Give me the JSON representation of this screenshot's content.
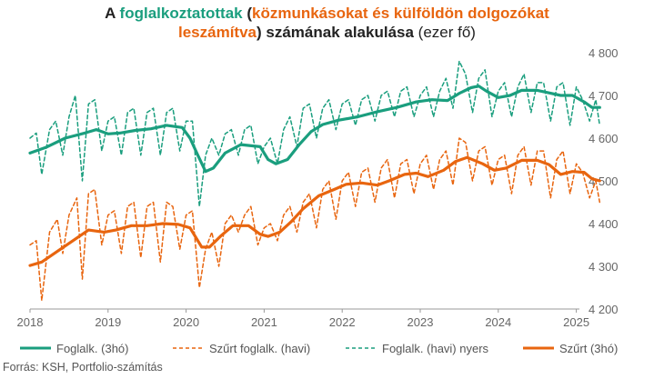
{
  "title": {
    "p1": "A ",
    "p2": "foglalkoztatottak",
    "p3": " (",
    "p4": "közmunkásokat és külföldön dolgozókat",
    "p5": "leszámítva",
    "p6": ") számának alakulása",
    "p7": " (ezer fő)"
  },
  "source": "Forrás: KSH, Portfolio-számítás",
  "colors": {
    "green": "#1a9e7e",
    "orange": "#e8650f"
  },
  "chart_data": {
    "type": "line",
    "x_ticks": [
      "2018",
      "2019",
      "2020",
      "2021",
      "2022",
      "2023",
      "2024",
      "2025"
    ],
    "y_ticks": [
      "4 800",
      "4 700",
      "4 600",
      "4 500",
      "4 400",
      "4 300",
      "4 200"
    ],
    "ylim": [
      4200,
      4800
    ],
    "grid": false,
    "legend_position": "bottom",
    "series": [
      {
        "name": "Foglalk. (3hó)",
        "key": "g3",
        "style": "solid",
        "color": "#1a9e7e",
        "points": [
          [
            2018.0,
            4565
          ],
          [
            2018.2,
            4578
          ],
          [
            2018.45,
            4600
          ],
          [
            2018.7,
            4612
          ],
          [
            2018.85,
            4620
          ],
          [
            2019.0,
            4610
          ],
          [
            2019.15,
            4612
          ],
          [
            2019.35,
            4618
          ],
          [
            2019.55,
            4622
          ],
          [
            2019.75,
            4630
          ],
          [
            2019.95,
            4625
          ],
          [
            2020.05,
            4600
          ],
          [
            2020.15,
            4560
          ],
          [
            2020.25,
            4522
          ],
          [
            2020.35,
            4530
          ],
          [
            2020.5,
            4565
          ],
          [
            2020.7,
            4585
          ],
          [
            2020.85,
            4582
          ],
          [
            2020.95,
            4580
          ],
          [
            2021.05,
            4550
          ],
          [
            2021.15,
            4540
          ],
          [
            2021.3,
            4550
          ],
          [
            2021.45,
            4585
          ],
          [
            2021.6,
            4615
          ],
          [
            2021.75,
            4632
          ],
          [
            2021.95,
            4642
          ],
          [
            2022.2,
            4650
          ],
          [
            2022.45,
            4662
          ],
          [
            2022.7,
            4672
          ],
          [
            2022.95,
            4685
          ],
          [
            2023.15,
            4690
          ],
          [
            2023.35,
            4688
          ],
          [
            2023.5,
            4705
          ],
          [
            2023.65,
            4718
          ],
          [
            2023.75,
            4722
          ],
          [
            2023.85,
            4710
          ],
          [
            2024.0,
            4695
          ],
          [
            2024.15,
            4700
          ],
          [
            2024.3,
            4712
          ],
          [
            2024.5,
            4712
          ],
          [
            2024.65,
            4706
          ],
          [
            2024.8,
            4700
          ],
          [
            2024.95,
            4700
          ],
          [
            2025.1,
            4685
          ],
          [
            2025.2,
            4672
          ],
          [
            2025.3,
            4672
          ]
        ]
      },
      {
        "name": "Szűrt foglalk. (havi)",
        "key": "oh",
        "style": "dashed",
        "color": "#e8650f",
        "points": [
          [
            2018.0,
            4350
          ],
          [
            2018.08,
            4360
          ],
          [
            2018.15,
            4220
          ],
          [
            2018.25,
            4380
          ],
          [
            2018.35,
            4410
          ],
          [
            2018.42,
            4330
          ],
          [
            2018.5,
            4420
          ],
          [
            2018.6,
            4460
          ],
          [
            2018.67,
            4270
          ],
          [
            2018.75,
            4470
          ],
          [
            2018.83,
            4480
          ],
          [
            2018.92,
            4350
          ],
          [
            2019.0,
            4420
          ],
          [
            2019.08,
            4430
          ],
          [
            2019.17,
            4330
          ],
          [
            2019.25,
            4440
          ],
          [
            2019.33,
            4450
          ],
          [
            2019.42,
            4320
          ],
          [
            2019.5,
            4440
          ],
          [
            2019.58,
            4450
          ],
          [
            2019.67,
            4310
          ],
          [
            2019.75,
            4450
          ],
          [
            2019.83,
            4440
          ],
          [
            2019.92,
            4340
          ],
          [
            2020.0,
            4420
          ],
          [
            2020.08,
            4430
          ],
          [
            2020.17,
            4250
          ],
          [
            2020.25,
            4340
          ],
          [
            2020.33,
            4380
          ],
          [
            2020.42,
            4300
          ],
          [
            2020.5,
            4400
          ],
          [
            2020.58,
            4420
          ],
          [
            2020.67,
            4380
          ],
          [
            2020.75,
            4420
          ],
          [
            2020.83,
            4440
          ],
          [
            2020.92,
            4350
          ],
          [
            2021.0,
            4390
          ],
          [
            2021.08,
            4400
          ],
          [
            2021.17,
            4360
          ],
          [
            2021.25,
            4420
          ],
          [
            2021.33,
            4440
          ],
          [
            2021.42,
            4380
          ],
          [
            2021.5,
            4450
          ],
          [
            2021.58,
            4470
          ],
          [
            2021.67,
            4390
          ],
          [
            2021.75,
            4480
          ],
          [
            2021.83,
            4500
          ],
          [
            2021.92,
            4410
          ],
          [
            2022.0,
            4500
          ],
          [
            2022.08,
            4520
          ],
          [
            2022.17,
            4440
          ],
          [
            2022.25,
            4520
          ],
          [
            2022.33,
            4530
          ],
          [
            2022.42,
            4450
          ],
          [
            2022.5,
            4530
          ],
          [
            2022.58,
            4550
          ],
          [
            2022.67,
            4460
          ],
          [
            2022.75,
            4540
          ],
          [
            2022.83,
            4550
          ],
          [
            2022.92,
            4470
          ],
          [
            2023.0,
            4540
          ],
          [
            2023.08,
            4560
          ],
          [
            2023.17,
            4480
          ],
          [
            2023.25,
            4550
          ],
          [
            2023.33,
            4570
          ],
          [
            2023.42,
            4490
          ],
          [
            2023.5,
            4600
          ],
          [
            2023.58,
            4590
          ],
          [
            2023.67,
            4500
          ],
          [
            2023.75,
            4570
          ],
          [
            2023.83,
            4580
          ],
          [
            2023.92,
            4490
          ],
          [
            2024.0,
            4550
          ],
          [
            2024.08,
            4560
          ],
          [
            2024.17,
            4470
          ],
          [
            2024.25,
            4560
          ],
          [
            2024.33,
            4580
          ],
          [
            2024.42,
            4490
          ],
          [
            2024.5,
            4570
          ],
          [
            2024.58,
            4570
          ],
          [
            2024.67,
            4460
          ],
          [
            2024.75,
            4550
          ],
          [
            2024.83,
            4570
          ],
          [
            2024.92,
            4470
          ],
          [
            2025.0,
            4540
          ],
          [
            2025.08,
            4520
          ],
          [
            2025.17,
            4460
          ],
          [
            2025.25,
            4500
          ],
          [
            2025.3,
            4450
          ]
        ]
      },
      {
        "name": "Foglalk. (havi) nyers",
        "key": "gh",
        "style": "dashed",
        "color": "#1a9e7e",
        "points": [
          [
            2018.0,
            4600
          ],
          [
            2018.08,
            4612
          ],
          [
            2018.15,
            4515
          ],
          [
            2018.25,
            4620
          ],
          [
            2018.33,
            4640
          ],
          [
            2018.42,
            4560
          ],
          [
            2018.5,
            4650
          ],
          [
            2018.58,
            4700
          ],
          [
            2018.67,
            4500
          ],
          [
            2018.75,
            4680
          ],
          [
            2018.83,
            4690
          ],
          [
            2018.92,
            4570
          ],
          [
            2019.0,
            4640
          ],
          [
            2019.08,
            4650
          ],
          [
            2019.17,
            4560
          ],
          [
            2019.25,
            4660
          ],
          [
            2019.33,
            4670
          ],
          [
            2019.42,
            4560
          ],
          [
            2019.5,
            4660
          ],
          [
            2019.58,
            4670
          ],
          [
            2019.67,
            4560
          ],
          [
            2019.75,
            4660
          ],
          [
            2019.83,
            4670
          ],
          [
            2019.92,
            4570
          ],
          [
            2020.0,
            4640
          ],
          [
            2020.08,
            4640
          ],
          [
            2020.17,
            4440
          ],
          [
            2020.25,
            4560
          ],
          [
            2020.33,
            4600
          ],
          [
            2020.42,
            4560
          ],
          [
            2020.5,
            4610
          ],
          [
            2020.58,
            4620
          ],
          [
            2020.67,
            4560
          ],
          [
            2020.75,
            4620
          ],
          [
            2020.83,
            4630
          ],
          [
            2020.92,
            4540
          ],
          [
            2021.0,
            4580
          ],
          [
            2021.08,
            4600
          ],
          [
            2021.17,
            4540
          ],
          [
            2021.25,
            4620
          ],
          [
            2021.33,
            4650
          ],
          [
            2021.42,
            4580
          ],
          [
            2021.5,
            4670
          ],
          [
            2021.58,
            4680
          ],
          [
            2021.67,
            4600
          ],
          [
            2021.75,
            4670
          ],
          [
            2021.83,
            4690
          ],
          [
            2021.92,
            4620
          ],
          [
            2022.0,
            4680
          ],
          [
            2022.08,
            4690
          ],
          [
            2022.17,
            4630
          ],
          [
            2022.25,
            4690
          ],
          [
            2022.33,
            4700
          ],
          [
            2022.42,
            4640
          ],
          [
            2022.5,
            4700
          ],
          [
            2022.58,
            4710
          ],
          [
            2022.67,
            4650
          ],
          [
            2022.75,
            4710
          ],
          [
            2022.83,
            4720
          ],
          [
            2022.92,
            4650
          ],
          [
            2023.0,
            4700
          ],
          [
            2023.08,
            4720
          ],
          [
            2023.17,
            4650
          ],
          [
            2023.25,
            4710
          ],
          [
            2023.33,
            4740
          ],
          [
            2023.42,
            4670
          ],
          [
            2023.5,
            4780
          ],
          [
            2023.58,
            4750
          ],
          [
            2023.67,
            4660
          ],
          [
            2023.75,
            4740
          ],
          [
            2023.83,
            4760
          ],
          [
            2023.92,
            4650
          ],
          [
            2024.0,
            4710
          ],
          [
            2024.08,
            4730
          ],
          [
            2024.17,
            4650
          ],
          [
            2024.25,
            4720
          ],
          [
            2024.33,
            4750
          ],
          [
            2024.42,
            4660
          ],
          [
            2024.5,
            4730
          ],
          [
            2024.58,
            4730
          ],
          [
            2024.67,
            4640
          ],
          [
            2024.75,
            4720
          ],
          [
            2024.83,
            4730
          ],
          [
            2024.92,
            4630
          ],
          [
            2025.0,
            4720
          ],
          [
            2025.08,
            4690
          ],
          [
            2025.17,
            4640
          ],
          [
            2025.25,
            4690
          ],
          [
            2025.3,
            4630
          ]
        ]
      },
      {
        "name": "Szűrt (3hó)",
        "key": "o3",
        "style": "solid",
        "color": "#e8650f",
        "points": [
          [
            2018.0,
            4302
          ],
          [
            2018.15,
            4310
          ],
          [
            2018.35,
            4335
          ],
          [
            2018.55,
            4360
          ],
          [
            2018.75,
            4385
          ],
          [
            2018.95,
            4380
          ],
          [
            2019.1,
            4385
          ],
          [
            2019.3,
            4395
          ],
          [
            2019.5,
            4395
          ],
          [
            2019.7,
            4400
          ],
          [
            2019.9,
            4398
          ],
          [
            2020.05,
            4390
          ],
          [
            2020.2,
            4345
          ],
          [
            2020.3,
            4345
          ],
          [
            2020.45,
            4372
          ],
          [
            2020.6,
            4395
          ],
          [
            2020.8,
            4395
          ],
          [
            2020.95,
            4375
          ],
          [
            2021.05,
            4370
          ],
          [
            2021.2,
            4380
          ],
          [
            2021.35,
            4405
          ],
          [
            2021.5,
            4435
          ],
          [
            2021.7,
            4465
          ],
          [
            2021.9,
            4480
          ],
          [
            2022.05,
            4492
          ],
          [
            2022.25,
            4495
          ],
          [
            2022.45,
            4490
          ],
          [
            2022.6,
            4500
          ],
          [
            2022.8,
            4515
          ],
          [
            2022.95,
            4518
          ],
          [
            2023.1,
            4510
          ],
          [
            2023.3,
            4525
          ],
          [
            2023.45,
            4545
          ],
          [
            2023.6,
            4555
          ],
          [
            2023.8,
            4540
          ],
          [
            2023.95,
            4525
          ],
          [
            2024.1,
            4530
          ],
          [
            2024.3,
            4548
          ],
          [
            2024.5,
            4548
          ],
          [
            2024.65,
            4538
          ],
          [
            2024.8,
            4515
          ],
          [
            2024.95,
            4522
          ],
          [
            2025.1,
            4520
          ],
          [
            2025.2,
            4505
          ],
          [
            2025.3,
            4500
          ]
        ]
      }
    ]
  }
}
